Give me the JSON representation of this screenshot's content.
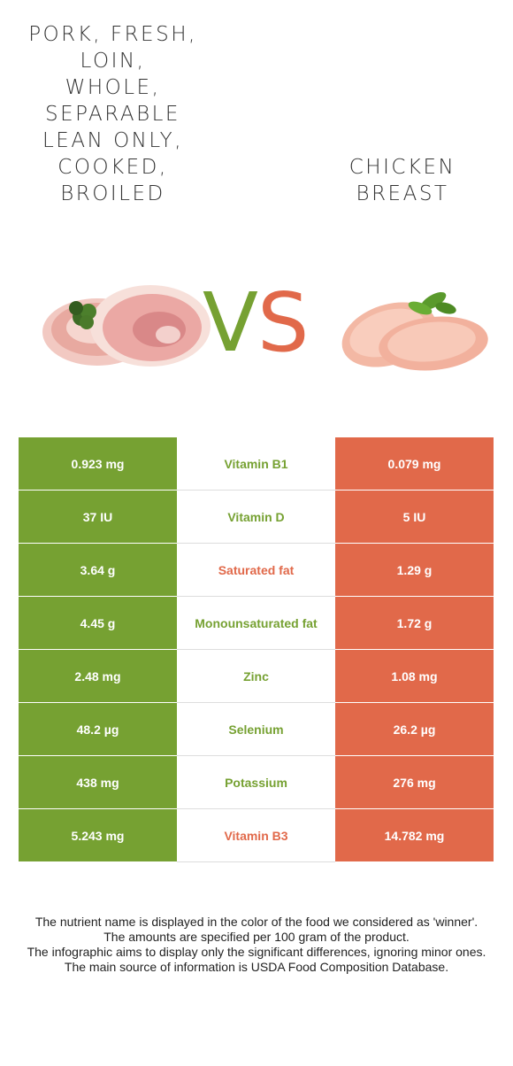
{
  "left_food": {
    "title": "Pork, fresh, loin, whole, separable lean only, cooked, broiled",
    "title_lines": [
      "Pork, fresh,",
      "loin,",
      "whole,",
      "separable",
      "lean only,",
      "cooked,",
      "broiled"
    ]
  },
  "right_food": {
    "title_lines": [
      "Chicken",
      "breast"
    ]
  },
  "vs": {
    "v": "V",
    "s": "S"
  },
  "colors": {
    "left": "#76a132",
    "right": "#e1694a"
  },
  "rows": [
    {
      "left": "0.923 mg",
      "nutrient": "Vitamin B1",
      "right": "0.079 mg",
      "winner": "left"
    },
    {
      "left": "37 IU",
      "nutrient": "Vitamin D",
      "right": "5 IU",
      "winner": "left"
    },
    {
      "left": "3.64 g",
      "nutrient": "Saturated fat",
      "right": "1.29 g",
      "winner": "right"
    },
    {
      "left": "4.45 g",
      "nutrient": "Monounsaturated fat",
      "right": "1.72 g",
      "winner": "left"
    },
    {
      "left": "2.48 mg",
      "nutrient": "Zinc",
      "right": "1.08 mg",
      "winner": "left"
    },
    {
      "left": "48.2 µg",
      "nutrient": "Selenium",
      "right": "26.2 µg",
      "winner": "left"
    },
    {
      "left": "438 mg",
      "nutrient": "Potassium",
      "right": "276 mg",
      "winner": "left"
    },
    {
      "left": "5.243 mg",
      "nutrient": "Vitamin B3",
      "right": "14.782 mg",
      "winner": "right"
    }
  ],
  "footer": [
    "The nutrient name is displayed in the color of the food we considered as 'winner'.",
    "The amounts are specified per 100 gram of the product.",
    "The infographic aims to display only the significant differences, ignoring minor ones.",
    "The main source of information is USDA Food Composition Database."
  ]
}
